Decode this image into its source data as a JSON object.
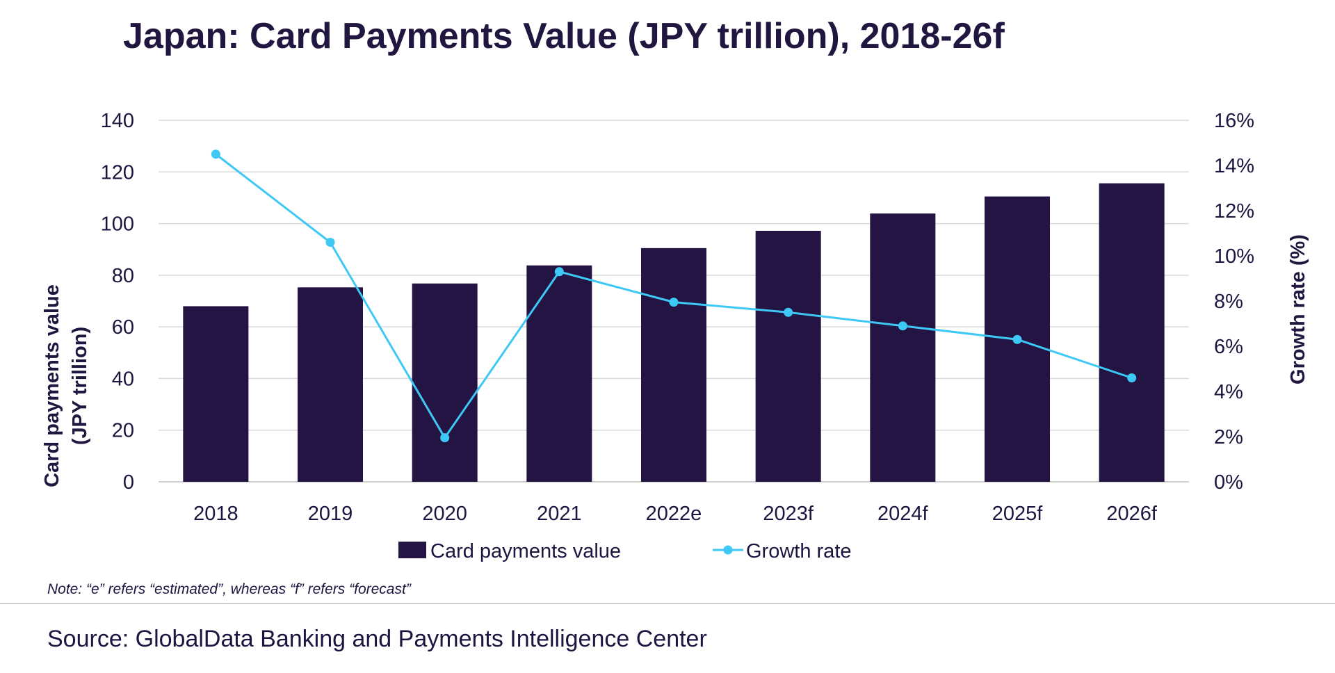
{
  "title": "Japan: Card Payments Value (JPY trillion), 2018-26f",
  "note": "Note: “e” refers “estimated”, whereas “f” refers “forecast”",
  "source": "Source: GlobalData Banking and Payments Intelligence Center",
  "colors": {
    "bar": "#231444",
    "line": "#3ec8f5",
    "grid": "#d9d9d9",
    "text": "#1e1440"
  },
  "chart_data": {
    "type": "bar",
    "categories": [
      "2018",
      "2019",
      "2020",
      "2021",
      "2022e",
      "2023f",
      "2024f",
      "2025f",
      "2026f"
    ],
    "series": [
      {
        "name": "Card payments value",
        "type": "bar",
        "axis": "left",
        "values": [
          68,
          75.3,
          76.8,
          83.8,
          90.5,
          97.2,
          103.9,
          110.5,
          115.6
        ]
      },
      {
        "name": "Growth rate",
        "type": "line",
        "axis": "right",
        "values": [
          14.5,
          10.6,
          1.95,
          9.3,
          7.95,
          7.5,
          6.9,
          6.3,
          4.6
        ]
      }
    ],
    "ylabel": "Card payments value (JPY trillion)",
    "y2label": "Growth rate (%)",
    "ylim": [
      0,
      140
    ],
    "yticks": [
      "0",
      "20",
      "40",
      "60",
      "80",
      "100",
      "120",
      "140"
    ],
    "y2lim": [
      0,
      16
    ],
    "y2ticks": [
      "0%",
      "2%",
      "4%",
      "6%",
      "8%",
      "10%",
      "12%",
      "14%",
      "16%"
    ],
    "grid": true,
    "legend_position": "bottom"
  }
}
